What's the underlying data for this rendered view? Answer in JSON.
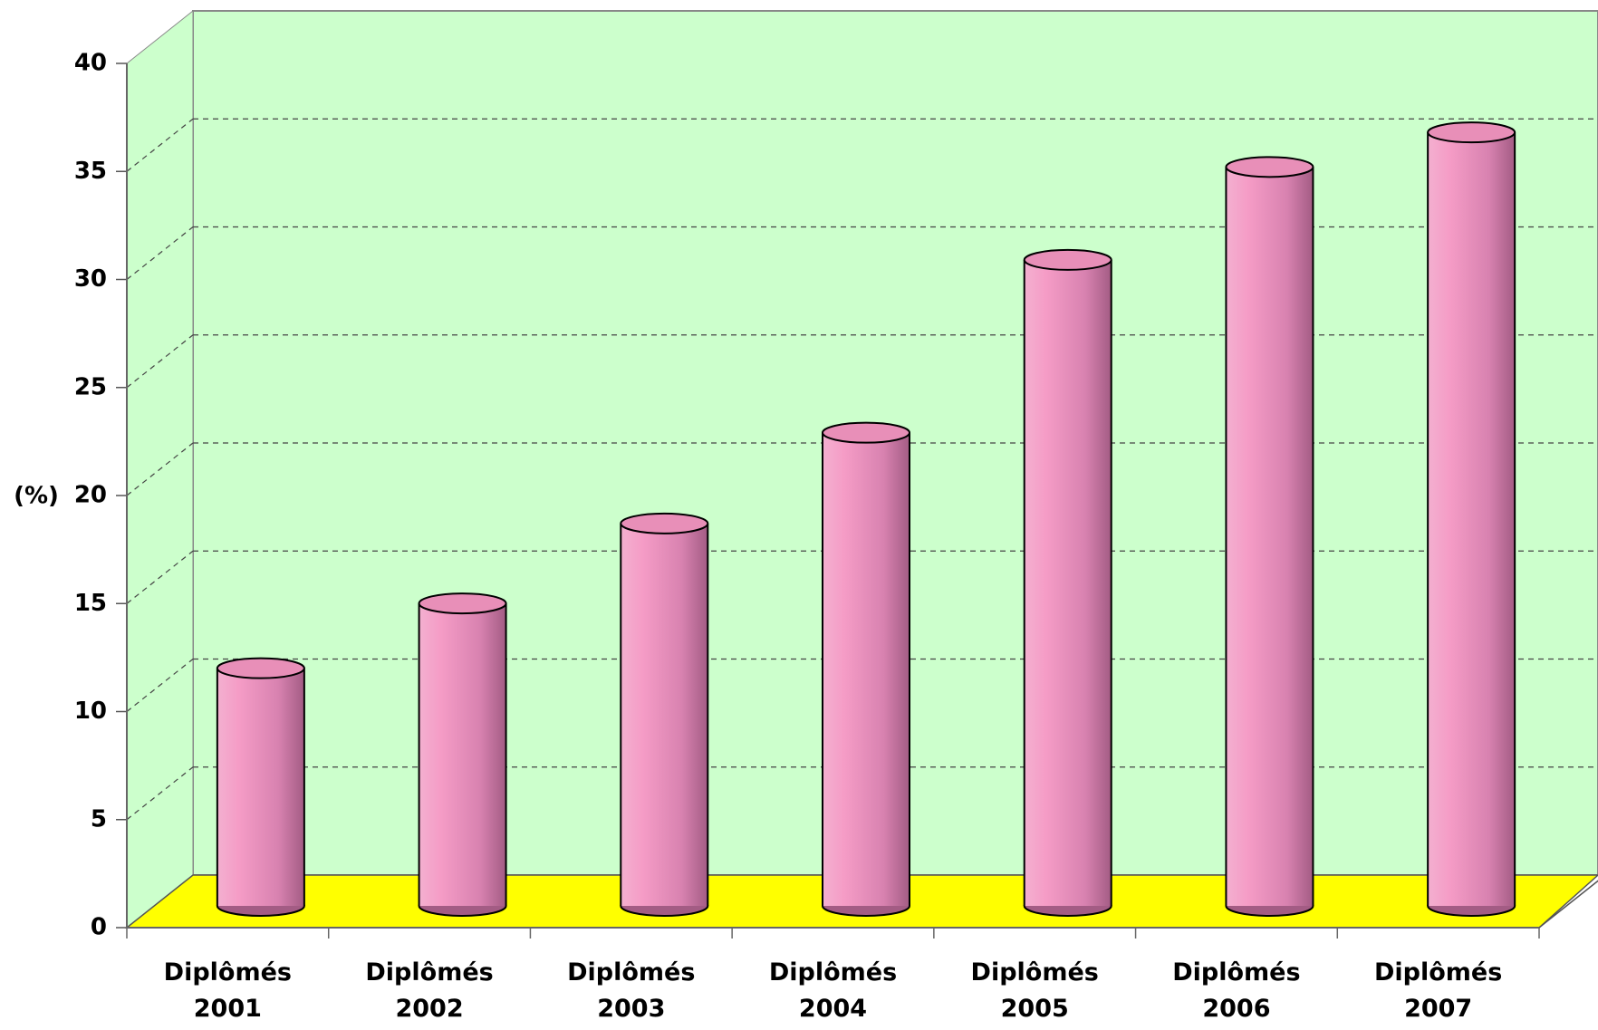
{
  "chart_data": {
    "type": "bar",
    "y_label": "(%)",
    "categories": [
      "Diplômés 2001",
      "Diplômés 2002",
      "Diplômés 2003",
      "Diplômés 2004",
      "Diplômés 2005",
      "Diplômés 2006",
      "Diplômés 2007"
    ],
    "values": [
      11,
      14,
      17.7,
      21.9,
      29.9,
      34.2,
      35.8
    ],
    "color": "#e88fb8",
    "ylim": [
      0,
      40
    ],
    "yticks": [
      0,
      5,
      10,
      15,
      20,
      25,
      30,
      35,
      40
    ],
    "grid": true,
    "wall_color": "#ccffcc",
    "floor_color": "#ffff00"
  }
}
